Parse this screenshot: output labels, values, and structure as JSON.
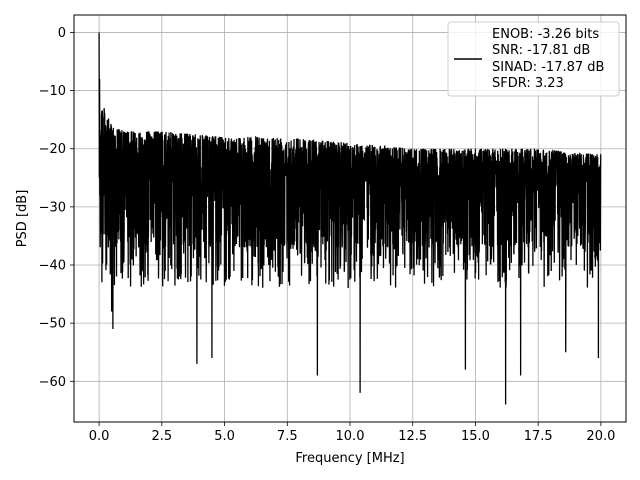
{
  "chart_data": {
    "type": "line",
    "title": "",
    "xlabel": "Frequency [MHz]",
    "ylabel": "PSD [dB]",
    "xlim": [
      -1.0,
      21.0
    ],
    "ylim": [
      -67.0,
      3.0
    ],
    "xticks": [
      0.0,
      2.5,
      5.0,
      7.5,
      10.0,
      12.5,
      15.0,
      17.5,
      20.0
    ],
    "xtick_labels": [
      "0.0",
      "2.5",
      "5.0",
      "7.5",
      "10.0",
      "12.5",
      "15.0",
      "17.5",
      "20.0"
    ],
    "yticks": [
      0,
      -10,
      -20,
      -30,
      -40,
      -50,
      -60
    ],
    "ytick_labels": [
      "0",
      "−10",
      "−20",
      "−30",
      "−40",
      "−50",
      "−60"
    ],
    "grid": true,
    "legend": {
      "placement": "top-right",
      "entries": [
        "ENOB: -3.26 bits",
        "SNR: -17.81 dB",
        "SINAD: -17.87 dB",
        "SFDR: 3.23"
      ]
    },
    "series": [
      {
        "color": "#000000",
        "x_range": [
          0.0,
          20.0
        ],
        "peak": {
          "x": 0.0,
          "y": 0.0
        },
        "upper_envelope": [
          {
            "x": 0.1,
            "y": -11
          },
          {
            "x": 0.3,
            "y": -13
          },
          {
            "x": 0.5,
            "y": -15
          },
          {
            "x": 1.0,
            "y": -16
          },
          {
            "x": 2.5,
            "y": -16
          },
          {
            "x": 5.0,
            "y": -17
          },
          {
            "x": 7.5,
            "y": -17
          },
          {
            "x": 10.0,
            "y": -18
          },
          {
            "x": 12.5,
            "y": -19
          },
          {
            "x": 15.0,
            "y": -19
          },
          {
            "x": 17.5,
            "y": -19
          },
          {
            "x": 20.0,
            "y": -20
          }
        ],
        "dense_band": [
          -35,
          -20
        ],
        "notable_minima": [
          {
            "x": 0.5,
            "y": -48
          },
          {
            "x": 0.55,
            "y": -51
          },
          {
            "x": 3.9,
            "y": -57
          },
          {
            "x": 4.5,
            "y": -56
          },
          {
            "x": 8.7,
            "y": -59
          },
          {
            "x": 10.4,
            "y": -62
          },
          {
            "x": 14.6,
            "y": -58
          },
          {
            "x": 16.2,
            "y": -64
          },
          {
            "x": 16.8,
            "y": -59
          },
          {
            "x": 18.6,
            "y": -55
          },
          {
            "x": 19.9,
            "y": -56
          }
        ]
      }
    ]
  }
}
